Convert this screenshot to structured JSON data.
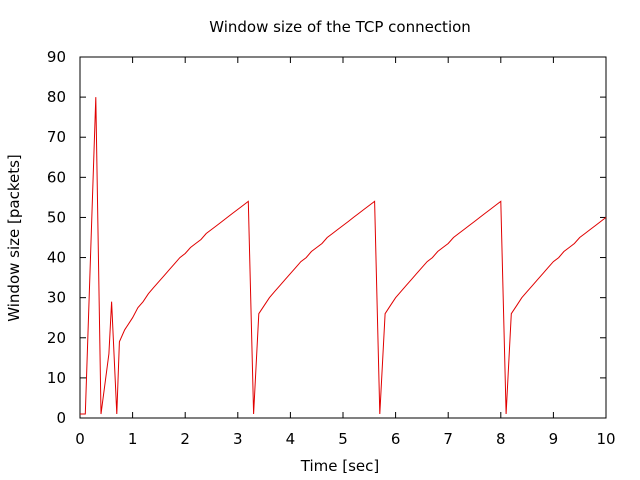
{
  "chart_data": {
    "type": "line",
    "title": "Window size of the TCP connection",
    "xlabel": "Time [sec]",
    "ylabel": "Window size [packets]",
    "xlim": [
      0,
      10
    ],
    "ylim": [
      0,
      90
    ],
    "xticks": [
      0,
      1,
      2,
      3,
      4,
      5,
      6,
      7,
      8,
      9,
      10
    ],
    "yticks": [
      0,
      10,
      20,
      30,
      40,
      50,
      60,
      70,
      80,
      90
    ],
    "grid": false,
    "legend": "none",
    "series": [
      {
        "color": "#e00000",
        "x": [
          0.0,
          0.1,
          0.3,
          0.4,
          0.55,
          0.6,
          0.7,
          0.75,
          0.85,
          1.0,
          1.1,
          1.2,
          1.3,
          1.4,
          1.5,
          1.6,
          1.7,
          1.8,
          1.9,
          2.0,
          2.1,
          2.2,
          2.3,
          2.4,
          2.5,
          2.6,
          2.7,
          2.8,
          2.9,
          3.0,
          3.1,
          3.2,
          3.3,
          3.4,
          3.5,
          3.6,
          3.7,
          3.8,
          3.9,
          4.0,
          4.1,
          4.2,
          4.3,
          4.4,
          4.5,
          4.6,
          4.7,
          4.8,
          4.9,
          5.0,
          5.1,
          5.2,
          5.3,
          5.4,
          5.5,
          5.6,
          5.7,
          5.8,
          5.9,
          6.0,
          6.1,
          6.2,
          6.3,
          6.4,
          6.5,
          6.6,
          6.7,
          6.8,
          6.9,
          7.0,
          7.1,
          7.2,
          7.3,
          7.4,
          7.5,
          7.6,
          7.7,
          7.8,
          7.9,
          8.0,
          8.1,
          8.2,
          8.3,
          8.4,
          8.5,
          8.6,
          8.7,
          8.8,
          8.9,
          9.0,
          9.1,
          9.2,
          9.3,
          9.4,
          9.5,
          9.6,
          9.7,
          9.8,
          9.9,
          10.0
        ],
        "y": [
          1,
          1,
          80,
          1,
          16,
          29,
          1,
          19,
          22,
          25,
          27.5,
          29,
          31,
          32.5,
          34,
          35.5,
          37,
          38.5,
          40,
          41,
          42.5,
          43.5,
          44.5,
          46,
          47,
          48,
          49,
          50,
          51,
          52,
          53,
          54,
          1,
          26,
          28,
          30,
          31.5,
          33,
          34.5,
          36,
          37.5,
          39,
          40,
          41.5,
          42.5,
          43.5,
          45,
          46,
          47,
          48,
          49,
          50,
          51,
          52,
          53,
          54,
          1,
          26,
          28,
          30,
          31.5,
          33,
          34.5,
          36,
          37.5,
          39,
          40,
          41.5,
          42.5,
          43.5,
          45,
          46,
          47,
          48,
          49,
          50,
          51,
          52,
          53,
          54,
          1,
          26,
          28,
          30,
          31.5,
          33,
          34.5,
          36,
          37.5,
          39,
          40,
          41.5,
          42.5,
          43.5,
          45,
          46,
          47,
          48,
          49,
          50
        ]
      }
    ]
  }
}
